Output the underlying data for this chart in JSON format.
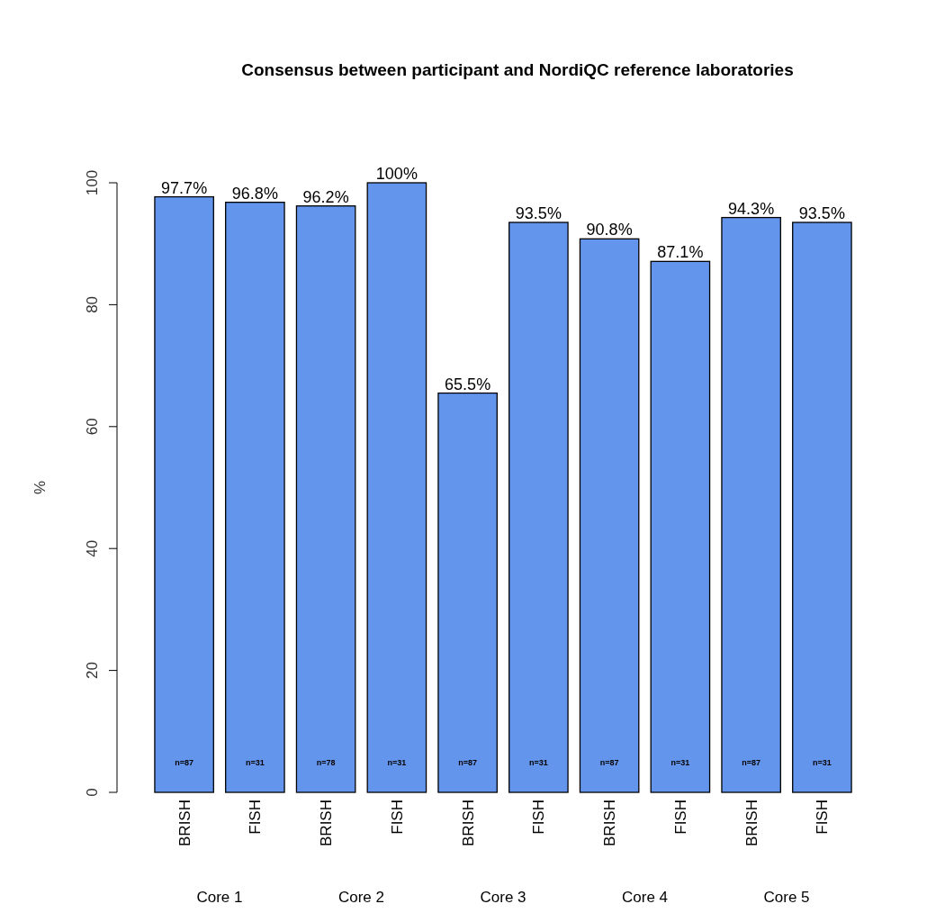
{
  "chart_data": {
    "type": "bar",
    "title": "Consensus between participant and NordiQC reference laboratories",
    "ylabel": "%",
    "categories": [
      "BRISH",
      "FISH",
      "BRISH",
      "FISH",
      "BRISH",
      "FISH",
      "BRISH",
      "FISH",
      "BRISH",
      "FISH"
    ],
    "values": [
      97.7,
      96.8,
      96.2,
      100,
      65.5,
      93.5,
      90.8,
      87.1,
      94.3,
      93.5
    ],
    "value_labels": [
      "97.7%",
      "96.8%",
      "96.2%",
      "100%",
      "65.5%",
      "93.5%",
      "90.8%",
      "87.1%",
      "94.3%",
      "93.5%"
    ],
    "color": "#6495ed",
    "ylim": [
      0,
      100
    ],
    "yticks": [
      0,
      20,
      40,
      60,
      80,
      100
    ],
    "grid": false,
    "annotations": [
      "n=87",
      "n=31",
      "n=78",
      "n=31",
      "n=87",
      "n=31",
      "n=87",
      "n=31",
      "n=87",
      "n=31",
      "Core 1",
      "Core 2",
      "Core 3",
      "Core 4",
      "Core 5"
    ]
  }
}
